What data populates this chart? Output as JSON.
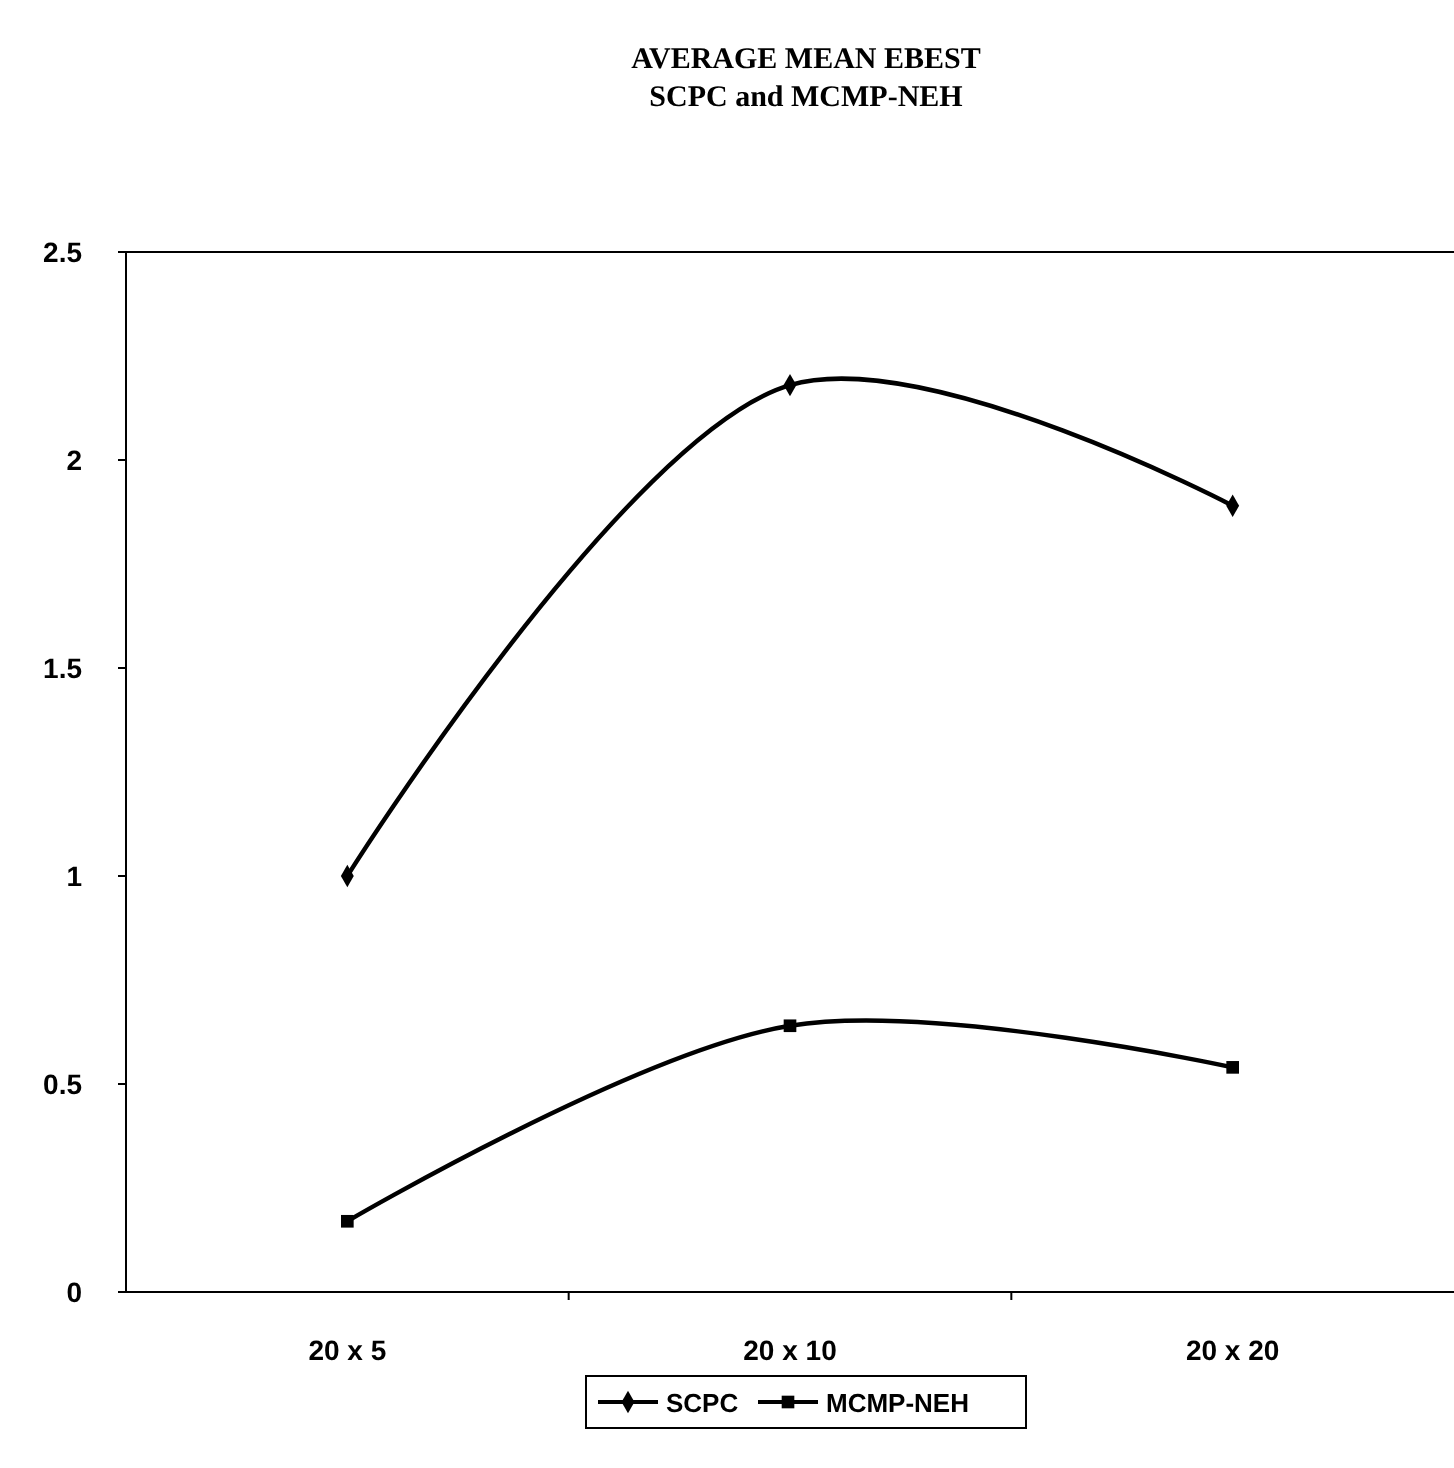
{
  "chart_data": {
    "type": "line",
    "title": "AVERAGE MEAN EBEST",
    "subtitle": "SCPC and MCMP-NEH",
    "categories": [
      "20 x 5",
      "20 x 10",
      "20 x 20"
    ],
    "series": [
      {
        "name": "SCPC",
        "color": "#000000",
        "values": [
          1.0,
          2.18,
          1.89
        ],
        "marker": "diamond"
      },
      {
        "name": "MCMP-NEH",
        "color": "#000000",
        "values": [
          0.17,
          0.64,
          0.54
        ],
        "marker": "square"
      }
    ],
    "ylim": [
      0,
      2.5
    ],
    "yticks": [
      0,
      0.5,
      1,
      1.5,
      2,
      2.5
    ],
    "grid": false,
    "legend": "bottom"
  }
}
